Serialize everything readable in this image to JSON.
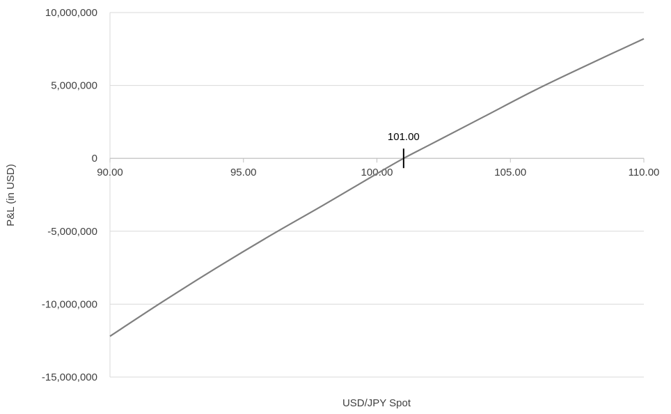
{
  "chart_data": {
    "type": "line",
    "title": "",
    "xlabel": "USD/JPY Spot",
    "ylabel": "P&L (in USD)",
    "xlim": [
      90,
      110
    ],
    "ylim": [
      -15000000,
      10000000
    ],
    "x_ticks": [
      90,
      95,
      100,
      105,
      110
    ],
    "x_tick_labels": [
      "90.00",
      "95.00",
      "100.00",
      "105.00",
      "110.00"
    ],
    "y_ticks": [
      10000000,
      5000000,
      0,
      -5000000,
      -10000000,
      -15000000
    ],
    "y_tick_labels": [
      "10,000,000",
      "5,000,000",
      "0",
      "-5,000,000",
      "-10,000,000",
      "-15,000,000"
    ],
    "grid": true,
    "legend": "none",
    "series": [
      {
        "color": "#7f7f7f",
        "x": [
          90,
          92,
          94,
          96,
          98,
          100,
          101,
          102,
          104,
          106,
          108,
          110
        ],
        "y": [
          -12200000,
          -9800000,
          -7500000,
          -5300000,
          -3200000,
          -1050000,
          0,
          950000,
          2850000,
          4750000,
          6500000,
          8200000
        ]
      }
    ],
    "annotations": [
      {
        "x": 101,
        "y": 0,
        "label": "101.00"
      }
    ]
  }
}
